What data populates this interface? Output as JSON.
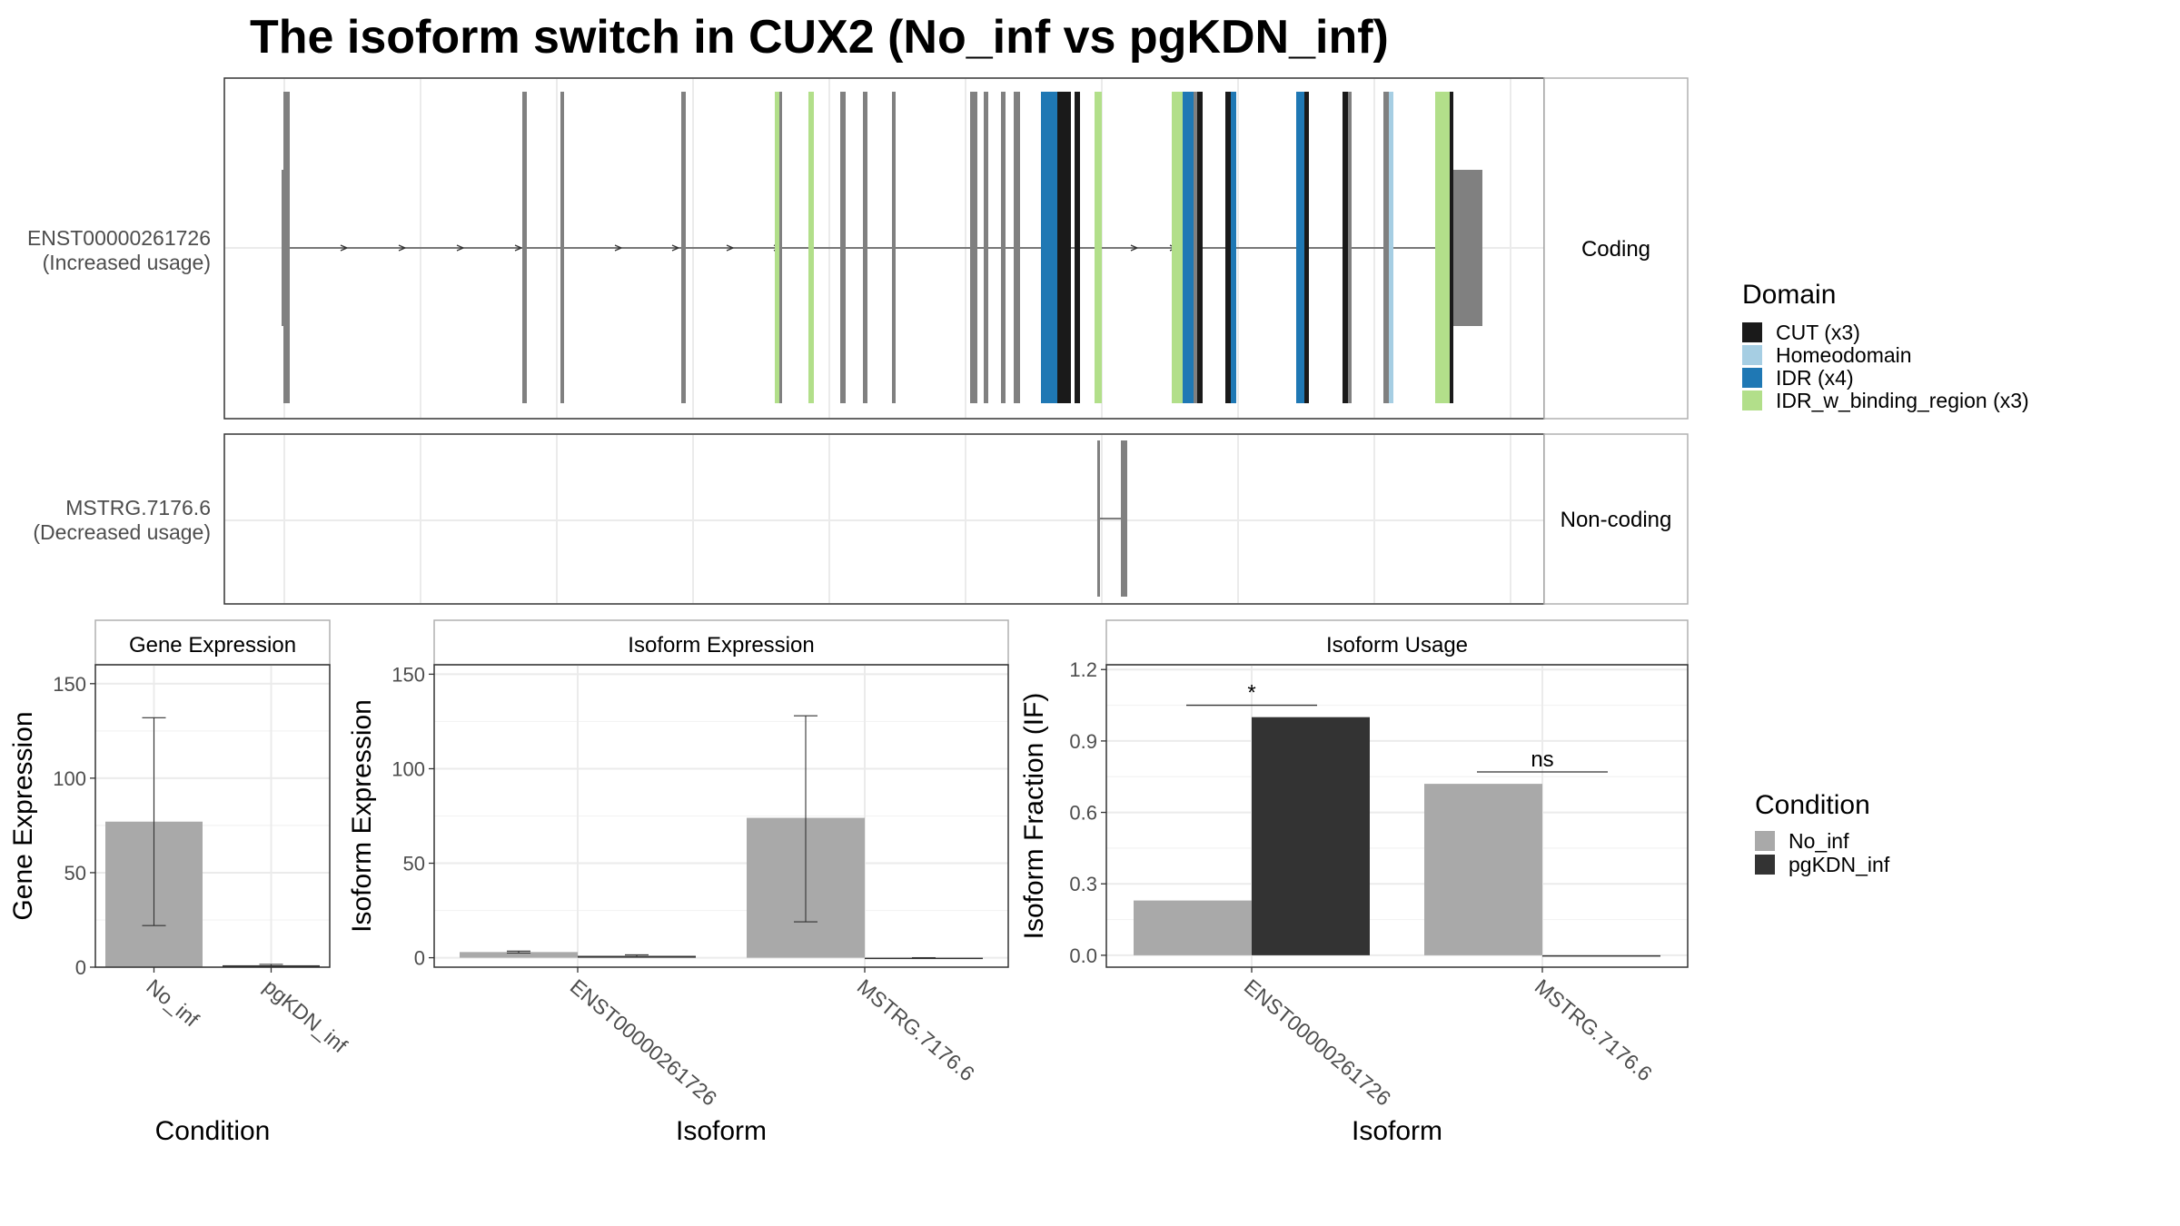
{
  "title": "The isoform switch in CUX2 (No_inf vs pgKDN_inf)",
  "colors": {
    "cut": "#1a1a1a",
    "homeodomain": "#a6cee3",
    "idr": "#1f78b4",
    "idr_binding": "#b2df8a",
    "exon_grey": "#808080",
    "no_inf": "#a9a9a9",
    "pgkdn_inf": "#333333",
    "grid": "#ebebeb",
    "strip": "#ffffff"
  },
  "structure": {
    "tracks": [
      {
        "label_line1": "ENST00000261726",
        "label_line2": "(Increased usage)",
        "facet": "Coding"
      },
      {
        "label_line1": "MSTRG.7176.6",
        "label_line2": "(Decreased usage)",
        "facet": "Non-coding"
      }
    ],
    "legend_title": "Domain",
    "legend_items": [
      {
        "label": "CUT (x3)",
        "color": "#1a1a1a"
      },
      {
        "label": "Homeodomain",
        "color": "#a6cee3"
      },
      {
        "label": "IDR (x4)",
        "color": "#1f78b4"
      },
      {
        "label": "IDR_w_binding_region (x3)",
        "color": "#b2df8a"
      }
    ]
  },
  "chart_data": [
    {
      "type": "bar",
      "strip": "Gene Expression",
      "xlabel": "Condition",
      "ylabel": "Gene Expression",
      "categories": [
        "No_inf",
        "pgKDN_inf"
      ],
      "ylim": [
        0,
        160
      ],
      "yticks": [
        0,
        50,
        100,
        150
      ],
      "series": [
        {
          "values": [
            77,
            1
          ],
          "err_low": [
            22,
            0.5
          ],
          "err_high": [
            132,
            1.5
          ]
        }
      ]
    },
    {
      "type": "bar",
      "strip": "Isoform Expression",
      "xlabel": "Isoform",
      "ylabel": "Isoform Expression",
      "categories": [
        "ENST00000261726",
        "MSTRG.7176.6"
      ],
      "ylim": [
        -5,
        155
      ],
      "yticks": [
        0,
        50,
        100,
        150
      ],
      "series": [
        {
          "name": "No_inf",
          "values": [
            3,
            74
          ],
          "err_low": [
            2.5,
            19
          ],
          "err_high": [
            3.5,
            128
          ]
        },
        {
          "name": "pgKDN_inf",
          "values": [
            1,
            0
          ],
          "err_low": [
            0.5,
            0
          ],
          "err_high": [
            1.5,
            0
          ]
        }
      ]
    },
    {
      "type": "bar",
      "strip": "Isoform Usage",
      "xlabel": "Isoform",
      "ylabel": "Isoform Fraction (IF)",
      "categories": [
        "ENST00000261726",
        "MSTRG.7176.6"
      ],
      "ylim": [
        -0.05,
        1.22
      ],
      "yticks": [
        "0.0",
        "0.3",
        "0.6",
        "0.9",
        "1.2"
      ],
      "series": [
        {
          "name": "No_inf",
          "values": [
            0.23,
            0.72
          ]
        },
        {
          "name": "pgKDN_inf",
          "values": [
            1.0,
            0.0
          ]
        }
      ],
      "significance": [
        "*",
        "ns"
      ]
    }
  ],
  "condition_legend": {
    "title": "Condition",
    "items": [
      {
        "label": "No_inf",
        "color": "#a9a9a9"
      },
      {
        "label": "pgKDN_inf",
        "color": "#333333"
      }
    ]
  }
}
